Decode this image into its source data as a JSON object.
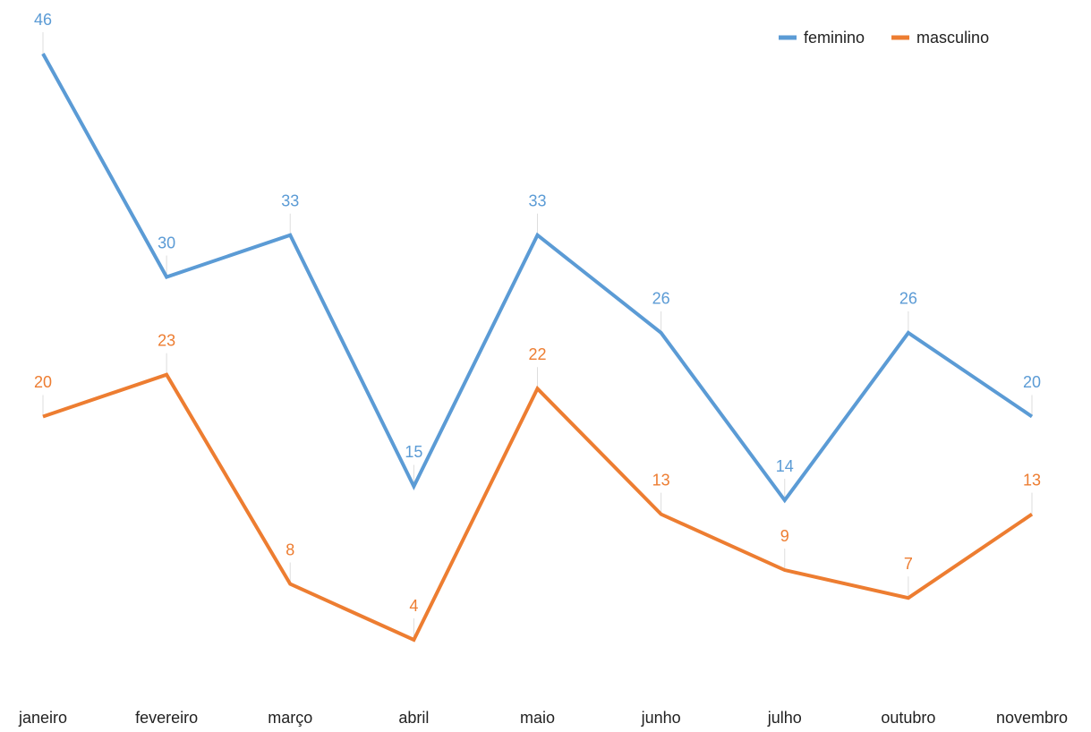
{
  "chart_data": {
    "type": "line",
    "categories": [
      "janeiro",
      "fevereiro",
      "março",
      "abril",
      "maio",
      "junho",
      "julho",
      "outubro",
      "novembro"
    ],
    "series": [
      {
        "name": "feminino",
        "color": "#5b9bd5",
        "values": [
          46,
          30,
          33,
          15,
          33,
          26,
          14,
          26,
          20
        ]
      },
      {
        "name": "masculino",
        "color": "#ed7d31",
        "values": [
          20,
          23,
          8,
          4,
          22,
          13,
          9,
          7,
          13
        ]
      }
    ],
    "legend": "top-right"
  }
}
